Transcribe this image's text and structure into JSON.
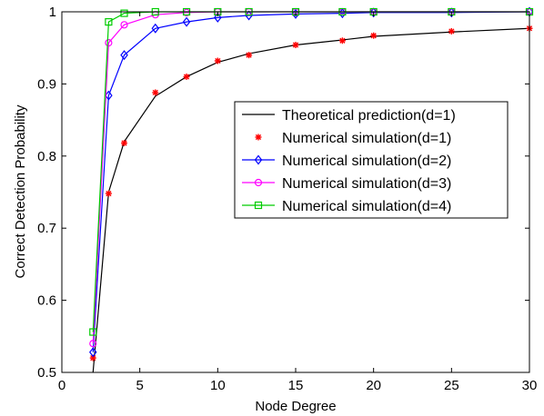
{
  "chart_data": {
    "type": "line",
    "title": "",
    "xlabel": "Node Degree",
    "ylabel": "Correct Detection Probability",
    "xlim": [
      0,
      30
    ],
    "ylim": [
      0.5,
      1
    ],
    "xticks": [
      0,
      5,
      10,
      15,
      20,
      25,
      30
    ],
    "yticks": [
      0.5,
      0.6,
      0.7,
      0.8,
      0.9,
      1
    ],
    "xtick_labels": [
      "0",
      "5",
      "10",
      "15",
      "20",
      "25",
      "30"
    ],
    "ytick_labels": [
      "0.5",
      "0.6",
      "0.7",
      "0.8",
      "0.9",
      "1"
    ],
    "grid": false,
    "legend_position": "center-right",
    "series": [
      {
        "name": "Theoretical prediction(d=1)",
        "color": "#000000",
        "style": "line",
        "marker": "none",
        "x": [
          2,
          3,
          4,
          6,
          8,
          10,
          12,
          15,
          18,
          20,
          25,
          30
        ],
        "y": [
          0.5,
          0.75,
          0.82,
          0.883,
          0.91,
          0.93,
          0.942,
          0.954,
          0.961,
          0.966,
          0.972,
          0.977
        ]
      },
      {
        "name": "Numerical simulation(d=1)",
        "color": "#ff0000",
        "style": "markers",
        "marker": "star",
        "x": [
          2,
          3,
          4,
          6,
          8,
          10,
          12,
          15,
          18,
          20,
          25,
          30
        ],
        "y": [
          0.52,
          0.748,
          0.818,
          0.888,
          0.91,
          0.932,
          0.94,
          0.954,
          0.96,
          0.967,
          0.973,
          0.977
        ]
      },
      {
        "name": "Numerical simulation(d=2)",
        "color": "#0000ff",
        "style": "line+markers",
        "marker": "diamond",
        "x": [
          2,
          3,
          4,
          6,
          8,
          10,
          12,
          15,
          18,
          20,
          25,
          30
        ],
        "y": [
          0.528,
          0.884,
          0.94,
          0.977,
          0.986,
          0.992,
          0.995,
          0.997,
          0.998,
          0.999,
          0.999,
          1.0
        ]
      },
      {
        "name": "Numerical simulation(d=3)",
        "color": "#ff00ff",
        "style": "line+markers",
        "marker": "circle",
        "x": [
          2,
          3,
          4,
          6,
          8,
          10,
          12,
          15,
          18,
          20,
          25,
          30
        ],
        "y": [
          0.54,
          0.957,
          0.982,
          0.996,
          0.999,
          1.0,
          1.0,
          1.0,
          1.0,
          1.0,
          1.0,
          1.0
        ]
      },
      {
        "name": "Numerical simulation(d=4)",
        "color": "#00cc00",
        "style": "line+markers",
        "marker": "square",
        "x": [
          2,
          3,
          4,
          6,
          8,
          10,
          12,
          15,
          18,
          20,
          25,
          30
        ],
        "y": [
          0.556,
          0.986,
          0.998,
          1.0,
          1.0,
          1.0,
          1.0,
          1.0,
          1.0,
          1.0,
          1.0,
          1.0
        ]
      }
    ]
  }
}
